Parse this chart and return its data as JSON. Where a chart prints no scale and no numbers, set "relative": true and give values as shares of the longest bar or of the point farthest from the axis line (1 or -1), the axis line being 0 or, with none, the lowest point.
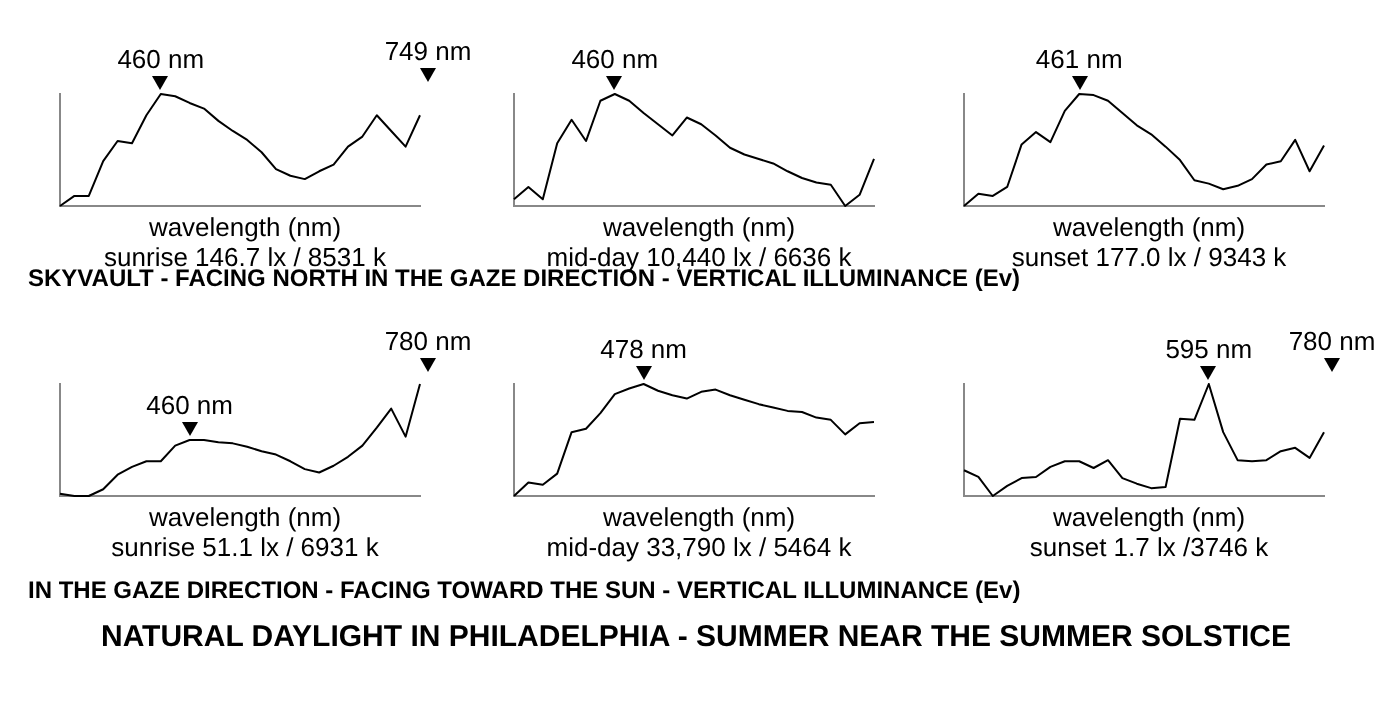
{
  "chart_data": [
    {
      "type": "line",
      "relative": true,
      "xlabel": "wavelength (nm)",
      "subtitle": "sunrise 146.7 lx / 8531 k",
      "categories": [
        null,
        null,
        null,
        null,
        null,
        null,
        null,
        null,
        null,
        null,
        null,
        null,
        null,
        null,
        null,
        null,
        null,
        null,
        null,
        null,
        null,
        null,
        null,
        null,
        null,
        null
      ],
      "series": [
        {
          "color": "#000000",
          "values": [
            0,
            0.09,
            0.09,
            0.4,
            0.58,
            0.56,
            0.81,
            1,
            0.98,
            0.92,
            0.87,
            0.76,
            0.67,
            0.59,
            0.48,
            0.33,
            0.27,
            0.24,
            0.31,
            0.37,
            0.53,
            0.62,
            0.81,
            0.67,
            0.53,
            0.81
          ]
        }
      ],
      "annotations": [
        {
          "text": "460 nm",
          "y": 1
        },
        "749 nm"
      ],
      "grid": false,
      "marker": "none",
      "line_style": "solid",
      "legend": false
    },
    {
      "type": "line",
      "relative": true,
      "xlabel": "wavelength (nm)",
      "subtitle": "mid-day 10,440 lx / 6636 k",
      "categories": [
        null,
        null,
        null,
        null,
        null,
        null,
        null,
        null,
        null,
        null,
        null,
        null,
        null,
        null,
        null,
        null,
        null,
        null,
        null,
        null,
        null,
        null,
        null,
        null,
        null,
        null
      ],
      "series": [
        {
          "color": "#000000",
          "values": [
            0.06,
            0.17,
            0.06,
            0.56,
            0.77,
            0.58,
            0.94,
            1,
            0.94,
            0.83,
            0.73,
            0.63,
            0.79,
            0.73,
            0.63,
            0.52,
            0.46,
            0.42,
            0.38,
            0.31,
            0.25,
            0.21,
            0.19,
            0,
            0.1,
            0.42
          ]
        }
      ],
      "annotations": [
        {
          "text": "460 nm",
          "y": 1
        }
      ],
      "grid": false,
      "marker": "none",
      "line_style": "solid",
      "legend": false
    },
    {
      "type": "line",
      "relative": true,
      "xlabel": "wavelength (nm)",
      "subtitle": "sunset 177.0 lx / 9343 k",
      "categories": [
        null,
        null,
        null,
        null,
        null,
        null,
        null,
        null,
        null,
        null,
        null,
        null,
        null,
        null,
        null,
        null,
        null,
        null,
        null,
        null,
        null,
        null,
        null,
        null,
        null,
        null
      ],
      "series": [
        {
          "color": "#000000",
          "values": [
            0,
            0.11,
            0.09,
            0.17,
            0.55,
            0.66,
            0.57,
            0.85,
            1,
            0.99,
            0.94,
            0.83,
            0.72,
            0.64,
            0.53,
            0.41,
            0.23,
            0.2,
            0.15,
            0.18,
            0.24,
            0.37,
            0.4,
            0.59,
            0.31,
            0.54
          ]
        }
      ],
      "annotations": [
        {
          "text": "461 nm",
          "y": 1
        }
      ],
      "grid": false,
      "marker": "none",
      "line_style": "solid",
      "legend": false
    },
    {
      "type": "line",
      "relative": true,
      "xlabel": "wavelength (nm)",
      "subtitle": "sunrise 51.1 lx / 6931 k",
      "categories": [
        null,
        null,
        null,
        null,
        null,
        null,
        null,
        null,
        null,
        null,
        null,
        null,
        null,
        null,
        null,
        null,
        null,
        null,
        null,
        null,
        null,
        null,
        null,
        null,
        null,
        null
      ],
      "series": [
        {
          "color": "#000000",
          "values": [
            0.02,
            0,
            0,
            0.06,
            0.19,
            0.26,
            0.31,
            0.31,
            0.45,
            0.5,
            0.5,
            0.48,
            0.47,
            0.44,
            0.4,
            0.37,
            0.31,
            0.24,
            0.21,
            0.27,
            0.35,
            0.45,
            0.61,
            0.78,
            0.53,
            1
          ]
        }
      ],
      "annotations": [
        {
          "text": "460 nm",
          "y": 0.5
        },
        "780 nm"
      ],
      "grid": false,
      "marker": "none",
      "line_style": "solid",
      "legend": false
    },
    {
      "type": "line",
      "relative": true,
      "xlabel": "wavelength (nm)",
      "subtitle": "mid-day 33,790 lx / 5464 k",
      "categories": [
        null,
        null,
        null,
        null,
        null,
        null,
        null,
        null,
        null,
        null,
        null,
        null,
        null,
        null,
        null,
        null,
        null,
        null,
        null,
        null,
        null,
        null,
        null,
        null,
        null,
        null
      ],
      "series": [
        {
          "color": "#000000",
          "values": [
            0,
            0.12,
            0.1,
            0.2,
            0.57,
            0.6,
            0.74,
            0.91,
            0.96,
            1,
            0.94,
            0.9,
            0.87,
            0.93,
            0.95,
            0.9,
            0.86,
            0.82,
            0.79,
            0.76,
            0.75,
            0.7,
            0.68,
            0.55,
            0.65,
            0.66
          ]
        }
      ],
      "annotations": [
        {
          "text": "478 nm",
          "y": 1
        }
      ],
      "grid": false,
      "marker": "none",
      "line_style": "solid",
      "legend": false
    },
    {
      "type": "line",
      "relative": true,
      "xlabel": "wavelength (nm)",
      "subtitle": "sunset 1.7 lx /3746 k",
      "categories": [
        null,
        null,
        null,
        null,
        null,
        null,
        null,
        null,
        null,
        null,
        null,
        null,
        null,
        null,
        null,
        null,
        null,
        null,
        null,
        null,
        null,
        null,
        null,
        null,
        null,
        null
      ],
      "series": [
        {
          "color": "#000000",
          "values": [
            0.23,
            0.17,
            0,
            0.09,
            0.16,
            0.17,
            0.26,
            0.31,
            0.31,
            0.25,
            0.32,
            0.16,
            0.11,
            0.07,
            0.08,
            0.69,
            0.68,
            1,
            0.57,
            0.32,
            0.31,
            0.32,
            0.4,
            0.43,
            0.34,
            0.57
          ]
        }
      ],
      "annotations": [
        {
          "text": "595 nm",
          "y": 1
        },
        "780 nm"
      ],
      "grid": false,
      "marker": "none",
      "line_style": "solid",
      "legend": false
    },
    {
      "type": "other",
      "title": "NATURAL DAYLIGHT IN PHILADELPHIA - SUMMER NEAR THE SUMMER SOLSTICE",
      "annotations": [
        "SKYVAULT - FACING NORTH IN THE GAZE DIRECTION - VERTICAL ILLUMINANCE (Ev)",
        "IN THE GAZE DIRECTION - FACING TOWARD THE SUN - VERTICAL ILLUMINANCE (Ev)"
      ]
    }
  ]
}
